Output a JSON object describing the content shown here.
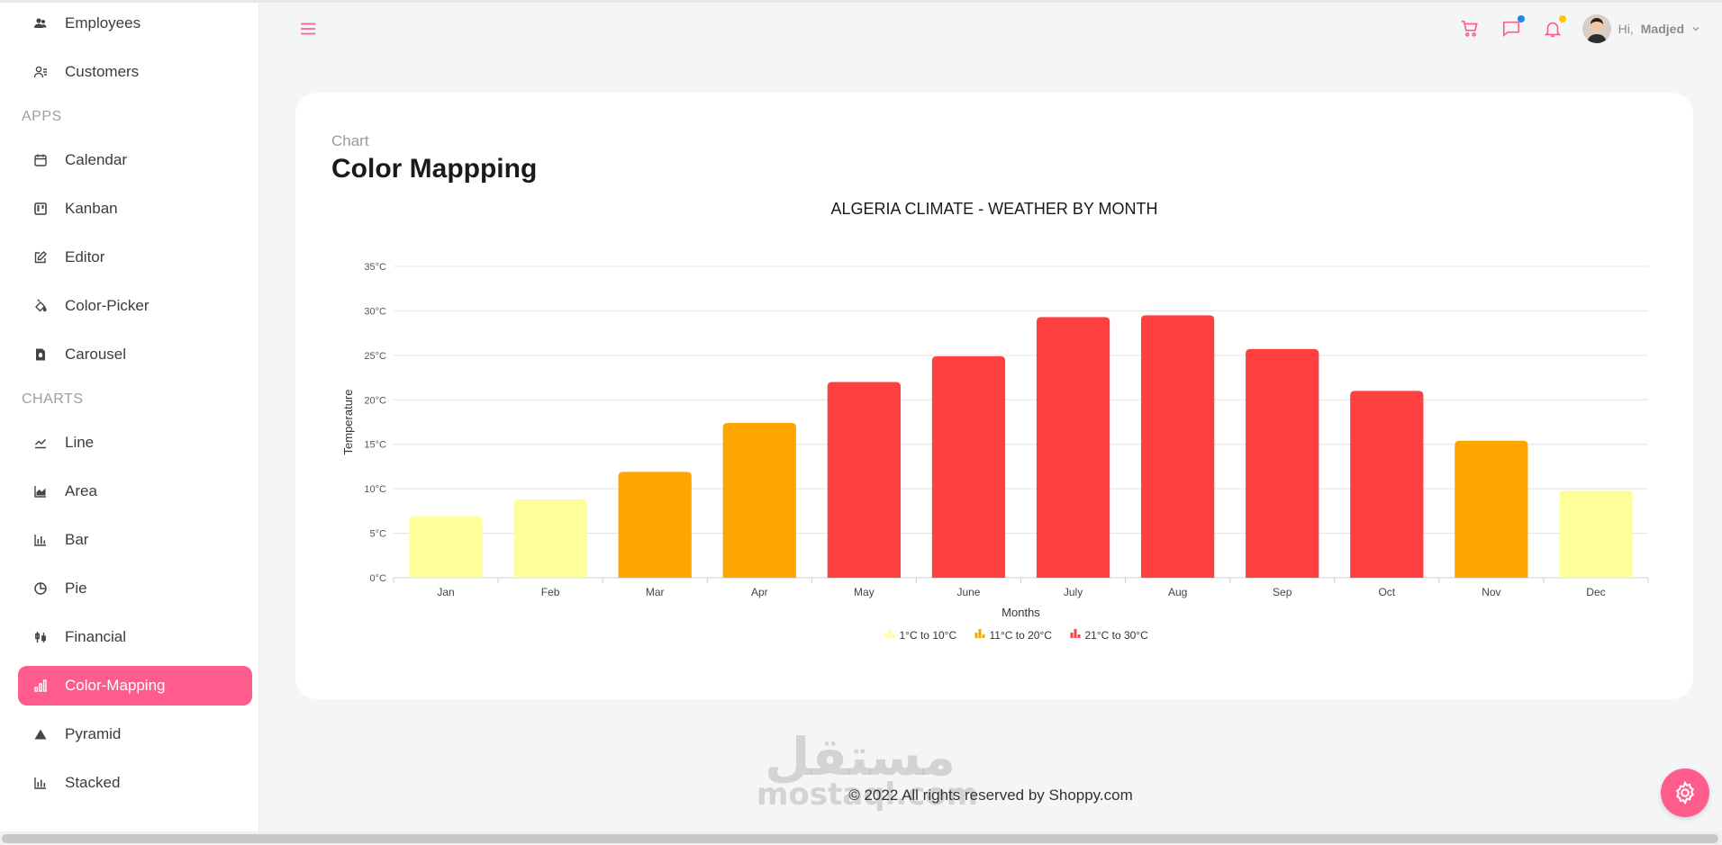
{
  "sidebar": {
    "items_top": [
      {
        "label": "Employees",
        "icon": "employees-icon"
      },
      {
        "label": "Customers",
        "icon": "customers-icon"
      }
    ],
    "apps_title": "APPS",
    "apps": [
      {
        "label": "Calendar",
        "icon": "calendar-icon"
      },
      {
        "label": "Kanban",
        "icon": "kanban-icon"
      },
      {
        "label": "Editor",
        "icon": "editor-icon"
      },
      {
        "label": "Color-Picker",
        "icon": "color-picker-icon"
      },
      {
        "label": "Carousel",
        "icon": "carousel-icon"
      }
    ],
    "charts_title": "CHARTS",
    "charts": [
      {
        "label": "Line",
        "icon": "line-chart-icon"
      },
      {
        "label": "Area",
        "icon": "area-chart-icon"
      },
      {
        "label": "Bar",
        "icon": "bar-chart-icon"
      },
      {
        "label": "Pie",
        "icon": "pie-chart-icon"
      },
      {
        "label": "Financial",
        "icon": "financial-icon"
      },
      {
        "label": "Color-Mapping",
        "icon": "color-mapping-icon",
        "active": true
      },
      {
        "label": "Pyramid",
        "icon": "pyramid-icon"
      },
      {
        "label": "Stacked",
        "icon": "stacked-icon"
      }
    ],
    "active_color": "#ff5c8e"
  },
  "topbar": {
    "greeting": "Hi,",
    "user_name": "Madjed",
    "chat_dot_color": "#1e88e5",
    "notification_dot_color": "#fdc500",
    "icon_color": "#ff5c8e"
  },
  "page": {
    "label": "Chart",
    "title": "Color Mappping"
  },
  "chart_data": {
    "type": "bar",
    "title": "ALGERIA CLIMATE - WEATHER BY MONTH",
    "xlabel": "Months",
    "ylabel": "Temperature",
    "categories": [
      "Jan",
      "Feb",
      "Mar",
      "Apr",
      "May",
      "June",
      "July",
      "Aug",
      "Sep",
      "Oct",
      "Nov",
      "Dec"
    ],
    "values": [
      6.9,
      8.8,
      11.9,
      17.4,
      22,
      24.9,
      29.3,
      29.5,
      25.7,
      21,
      15.4,
      9.8
    ],
    "ylim": [
      0,
      35
    ],
    "yticks": [
      "0°C",
      "5°C",
      "10°C",
      "15°C",
      "20°C",
      "25°C",
      "30°C",
      "35°C"
    ],
    "grid": true,
    "legend_position": "bottom",
    "color_ranges": [
      {
        "label": "1°C to 10°C",
        "from": 1,
        "to": 10,
        "color": "#ffff99"
      },
      {
        "label": "11°C to 20°C",
        "from": 11,
        "to": 20,
        "color": "#ffa500"
      },
      {
        "label": "21°C to 30°C",
        "from": 21,
        "to": 30,
        "color": "#ff4040"
      }
    ]
  },
  "footer": {
    "text": "© 2022 All rights reserved by Shoppy.com"
  },
  "watermark": {
    "arabic": "مستقل",
    "latin": "mostaql.com"
  }
}
